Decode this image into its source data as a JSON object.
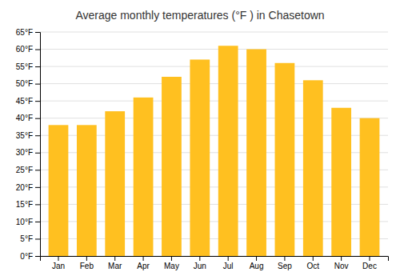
{
  "chart_data": {
    "type": "bar",
    "title": "Average monthly temperatures (°F ) in Chasetown",
    "categories": [
      "Jan",
      "Feb",
      "Mar",
      "Apr",
      "May",
      "Jun",
      "Jul",
      "Aug",
      "Sep",
      "Oct",
      "Nov",
      "Dec"
    ],
    "values": [
      38,
      38,
      42,
      46,
      52,
      57,
      61,
      60,
      56,
      51,
      43,
      40
    ],
    "color": "#FFC020",
    "ylim": [
      0,
      65
    ],
    "yticks": [
      {
        "value": 0,
        "label": "0°F"
      },
      {
        "value": 5,
        "label": "5°F"
      },
      {
        "value": 10,
        "label": "10°F"
      },
      {
        "value": 15,
        "label": "15°F"
      },
      {
        "value": 20,
        "label": "20°F"
      },
      {
        "value": 25,
        "label": "25°F"
      },
      {
        "value": 30,
        "label": "30°F"
      },
      {
        "value": 35,
        "label": "35°F"
      },
      {
        "value": 40,
        "label": "40°F"
      },
      {
        "value": 45,
        "label": "45°F"
      },
      {
        "value": 50,
        "label": "50°F"
      },
      {
        "value": 55,
        "label": "55°F"
      },
      {
        "value": 60,
        "label": "60°F"
      },
      {
        "value": 65,
        "label": "65°F"
      }
    ],
    "grid": true
  }
}
